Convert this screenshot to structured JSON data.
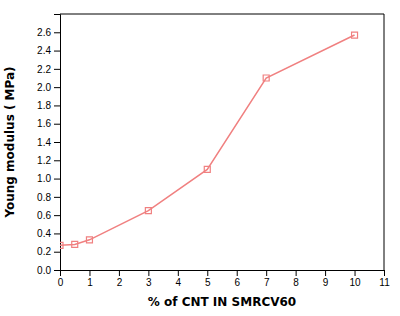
{
  "chart_data": {
    "type": "line",
    "x": [
      0,
      0.5,
      1,
      3,
      5,
      7,
      10
    ],
    "values": [
      0.27,
      0.28,
      0.33,
      0.65,
      1.1,
      2.1,
      2.57
    ],
    "color": "#f08080",
    "marker": "square",
    "xlabel": "% of CNT IN SMRCV60",
    "ylabel": "Young modulus ( MPa)",
    "xlim": [
      0,
      11
    ],
    "ylim": [
      0,
      2.8
    ],
    "xticks": [
      0,
      1,
      2,
      3,
      4,
      5,
      6,
      7,
      8,
      9,
      10,
      11
    ],
    "yticks": [
      {
        "value": 0,
        "label": "0.0"
      },
      0.2,
      0.4,
      0.6,
      0.8,
      {
        "value": 1,
        "label": "1.0"
      },
      1.2,
      1.4,
      1.6,
      1.8,
      {
        "value": 2,
        "label": "2.0"
      },
      2.2,
      2.4,
      2.6
    ]
  }
}
